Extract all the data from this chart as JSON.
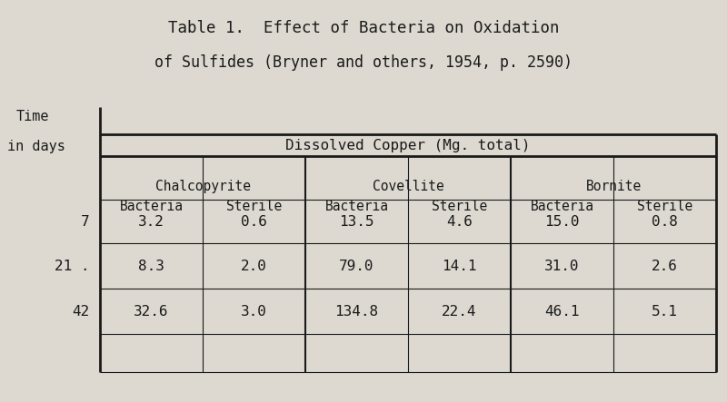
{
  "title_line1": "Table 1.  Effect of Bacteria on Oxidation",
  "title_line2": "of Sulfides (Bryner and others, 1954, p. 2590)",
  "dissolved_copper_label": "Dissolved Copper (Mg. total)",
  "mineral_names": [
    "Chalcopyrite",
    "Covellite",
    "Bornite"
  ],
  "sub_headers": [
    "Bacteria",
    "Sterile",
    "Bacteria",
    "Sterile",
    "Bacteria",
    "Sterile"
  ],
  "time_labels": [
    "7",
    "21 .",
    "42"
  ],
  "data": [
    [
      "3.2",
      "0.6",
      "13.5",
      "4.6",
      "15.0",
      "0.8"
    ],
    [
      "8.3",
      "2.0",
      "79.0",
      "14.1",
      "31.0",
      "2.6"
    ],
    [
      "32.6",
      "3.0",
      "134.8",
      "22.4",
      "46.1",
      "5.1"
    ]
  ],
  "bg_color": "#ddd9d0",
  "text_color": "#1a1a1a",
  "title_fontsize": 12.5,
  "header_fontsize": 10.5,
  "data_fontsize": 11.5,
  "time_fontsize": 11.5
}
